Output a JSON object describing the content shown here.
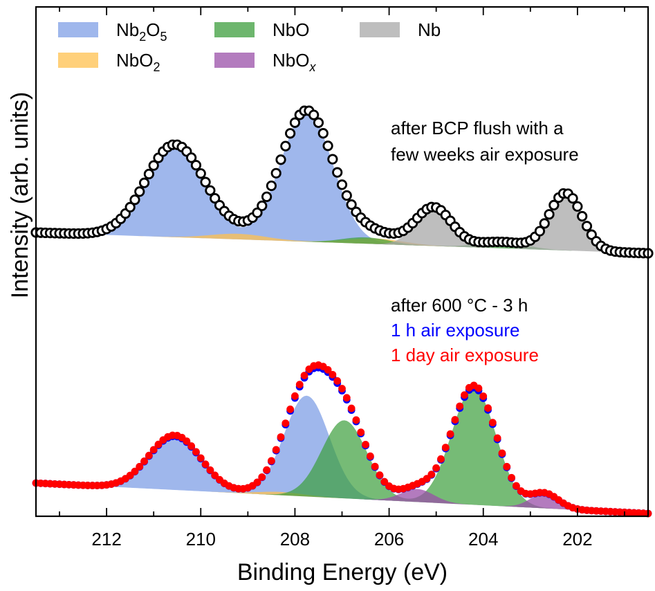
{
  "chart_data": {
    "type": "area",
    "xlabel": "Binding Energy (eV)",
    "ylabel": "Intensity (arb. units)",
    "xlim": [
      213.5,
      200.5
    ],
    "x_reversed": true,
    "x_ticks": [
      212,
      210,
      208,
      206,
      204,
      202
    ],
    "y_ticks": "none",
    "colors": {
      "nb2o5": "#7f9fe6",
      "nbo2": "#ffc04d",
      "nbo": "#3c9e3c",
      "nbox": "#9a4fa8",
      "nb": "#a8a8a8",
      "bcp_points": "#000000",
      "hour_points": "#0000ff",
      "day_points": "#ff0000"
    },
    "legend": [
      {
        "key": "nb2o5",
        "base": "Nb",
        "sub": "2",
        "mid": "O",
        "sub2": "5",
        "italic_sub": false
      },
      {
        "key": "nbo2",
        "base": "NbO",
        "sub": "2",
        "mid": "",
        "sub2": "",
        "italic_sub": false
      },
      {
        "key": "nbo",
        "base": "NbO",
        "sub": "",
        "mid": "",
        "sub2": "",
        "italic_sub": false
      },
      {
        "key": "nbox",
        "base": "NbO",
        "sub": "x",
        "mid": "",
        "sub2": "",
        "italic_sub": true
      },
      {
        "key": "nb",
        "base": "Nb",
        "sub": "",
        "mid": "",
        "sub2": "",
        "italic_sub": false
      }
    ],
    "annotations": {
      "top_line1": "after BCP flush with a",
      "top_line2": "few weeks air exposure",
      "bottom_line1": "after 600 °C - 3 h",
      "bottom_line2": "1 h air exposure",
      "bottom_line3": "1 day air exposure"
    },
    "series": [
      {
        "name": "after BCP flush with a few weeks air exposure",
        "baseline": [
          0.0,
          0.0
        ],
        "components": [
          {
            "species": "nb2o5",
            "peaks": [
              [
                210.55,
                0.58,
                0.62
              ],
              [
                207.75,
                0.82,
                0.55
              ]
            ]
          },
          {
            "species": "nbo2",
            "peaks": [
              [
                209.2,
                0.035,
                0.6
              ],
              [
                206.3,
                0.035,
                0.6
              ]
            ]
          },
          {
            "species": "nbo",
            "peaks": [
              [
                206.5,
                0.04,
                0.5
              ],
              [
                203.6,
                0.04,
                0.5
              ]
            ]
          },
          {
            "species": "nb",
            "peaks": [
              [
                205.05,
                0.24,
                0.38
              ],
              [
                202.25,
                0.36,
                0.35
              ]
            ]
          }
        ],
        "points_color": "nb2o5_black",
        "point_step": 0.1,
        "n_points": 131
      },
      {
        "name": "after 600 °C - 3 h, 1 h air exposure",
        "baseline": [
          0.0,
          0.0
        ],
        "components": [
          {
            "species": "nb2o5",
            "peaks": [
              [
                210.55,
                0.33,
                0.55
              ],
              [
                207.75,
                0.62,
                0.48
              ]
            ]
          },
          {
            "species": "nbo2",
            "peaks": [
              [
                208.3,
                0.02,
                0.5
              ]
            ]
          },
          {
            "species": "nbo",
            "peaks": [
              [
                206.95,
                0.48,
                0.48
              ],
              [
                204.2,
                0.72,
                0.47
              ]
            ]
          },
          {
            "species": "nbox",
            "peaks": [
              [
                205.4,
                0.08,
                0.35
              ],
              [
                202.7,
                0.09,
                0.3
              ]
            ]
          }
        ],
        "n_points": 131
      },
      {
        "name": "after 600 °C - 3 h, 1 day air exposure",
        "scale": 1.02,
        "n_points": 131
      }
    ]
  }
}
